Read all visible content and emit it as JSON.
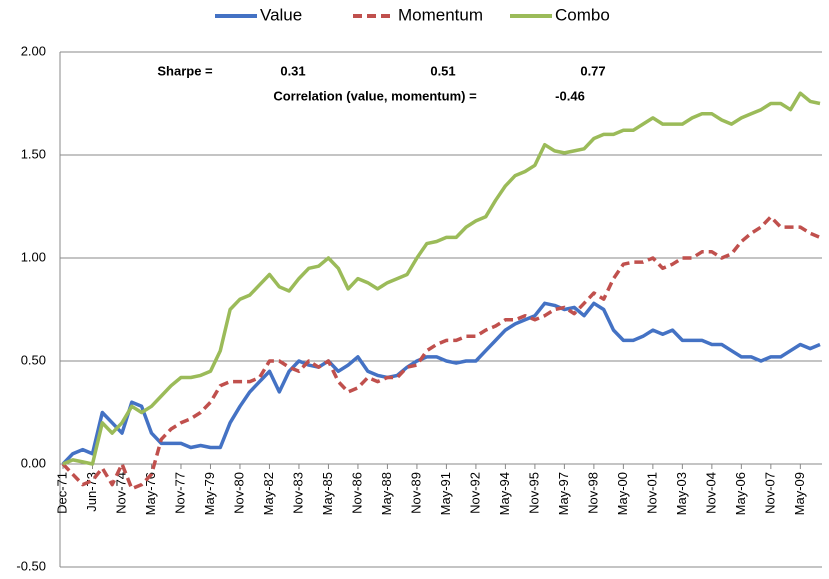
{
  "chart_data": {
    "type": "line",
    "categories": [
      "Dec-71",
      null,
      null,
      "Jun-73",
      null,
      null,
      "Nov-74",
      null,
      null,
      "May-76",
      null,
      null,
      "Nov-77",
      null,
      null,
      "May-79",
      null,
      null,
      "Nov-80",
      null,
      null,
      "May-82",
      null,
      null,
      "Nov-83",
      null,
      null,
      "May-85",
      null,
      null,
      "Nov-86",
      null,
      null,
      "May-88",
      null,
      null,
      "Nov-89",
      null,
      null,
      "May-91",
      null,
      null,
      "Nov-92",
      null,
      null,
      "May-94",
      null,
      null,
      "Nov-95",
      null,
      null,
      "May-97",
      null,
      null,
      "Nov-98",
      null,
      null,
      "May-00",
      null,
      null,
      "Nov-01",
      null,
      null,
      "May-03",
      null,
      null,
      "Nov-04",
      null,
      null,
      "May-06",
      null,
      null,
      "Nov-07",
      null,
      null,
      "May-09",
      null,
      null
    ],
    "series": [
      {
        "name": "Value",
        "color": "#4472c4",
        "dash": false,
        "values": [
          0.0,
          0.05,
          0.07,
          0.05,
          0.25,
          0.2,
          0.15,
          0.3,
          0.28,
          0.15,
          0.1,
          0.1,
          0.1,
          0.08,
          0.09,
          0.08,
          0.08,
          0.2,
          0.28,
          0.35,
          0.4,
          0.45,
          0.35,
          0.45,
          0.5,
          0.48,
          0.47,
          0.5,
          0.45,
          0.48,
          0.52,
          0.45,
          0.43,
          0.42,
          0.43,
          0.47,
          0.5,
          0.52,
          0.52,
          0.5,
          0.49,
          0.5,
          0.5,
          0.55,
          0.6,
          0.65,
          0.68,
          0.7,
          0.72,
          0.78,
          0.77,
          0.75,
          0.76,
          0.72,
          0.78,
          0.75,
          0.65,
          0.6,
          0.6,
          0.62,
          0.65,
          0.63,
          0.65,
          0.6,
          0.6,
          0.6,
          0.58,
          0.58,
          0.55,
          0.52,
          0.52,
          0.5,
          0.52,
          0.52,
          0.55,
          0.58,
          0.56,
          0.58
        ]
      },
      {
        "name": "Momentum",
        "color": "#c0504d",
        "dash": true,
        "values": [
          0.0,
          -0.05,
          -0.1,
          -0.08,
          -0.02,
          -0.1,
          0.0,
          -0.12,
          -0.1,
          -0.05,
          0.12,
          0.17,
          0.2,
          0.22,
          0.25,
          0.3,
          0.38,
          0.4,
          0.4,
          0.4,
          0.42,
          0.5,
          0.5,
          0.47,
          0.45,
          0.5,
          0.47,
          0.5,
          0.4,
          0.35,
          0.37,
          0.42,
          0.4,
          0.42,
          0.42,
          0.47,
          0.48,
          0.55,
          0.58,
          0.6,
          0.6,
          0.62,
          0.62,
          0.65,
          0.67,
          0.7,
          0.7,
          0.72,
          0.7,
          0.72,
          0.75,
          0.76,
          0.73,
          0.78,
          0.83,
          0.8,
          0.9,
          0.97,
          0.98,
          0.98,
          1.0,
          0.95,
          0.97,
          1.0,
          1.0,
          1.03,
          1.03,
          1.0,
          1.02,
          1.08,
          1.12,
          1.15,
          1.2,
          1.15,
          1.15,
          1.15,
          1.12,
          1.1
        ]
      },
      {
        "name": "Combo",
        "color": "#9bbb59",
        "dash": false,
        "values": [
          0.0,
          0.02,
          0.01,
          0.0,
          0.2,
          0.15,
          0.2,
          0.28,
          0.25,
          0.28,
          0.33,
          0.38,
          0.42,
          0.42,
          0.43,
          0.45,
          0.55,
          0.75,
          0.8,
          0.82,
          0.87,
          0.92,
          0.86,
          0.84,
          0.9,
          0.95,
          0.96,
          1.0,
          0.95,
          0.85,
          0.9,
          0.88,
          0.85,
          0.88,
          0.9,
          0.92,
          1.0,
          1.07,
          1.08,
          1.1,
          1.1,
          1.15,
          1.18,
          1.2,
          1.28,
          1.35,
          1.4,
          1.42,
          1.45,
          1.55,
          1.52,
          1.51,
          1.52,
          1.53,
          1.58,
          1.6,
          1.6,
          1.62,
          1.62,
          1.65,
          1.68,
          1.65,
          1.65,
          1.65,
          1.68,
          1.7,
          1.7,
          1.67,
          1.65,
          1.68,
          1.7,
          1.72,
          1.75,
          1.75,
          1.72,
          1.8,
          1.76,
          1.75
        ]
      }
    ],
    "ylim": [
      -0.5,
      2.0
    ],
    "yticks": [
      {
        "value": -0.5,
        "label": "-0.50"
      },
      {
        "value": 0,
        "label": "0.00"
      },
      {
        "value": 0.5,
        "label": "0.50"
      },
      {
        "value": 1,
        "label": "1.00"
      },
      {
        "value": 1.5,
        "label": "1.50"
      },
      {
        "value": 2,
        "label": "2.00"
      }
    ],
    "grid": true,
    "legend": "top",
    "annotations": [
      "Sharpe =",
      "0.31",
      "0.51",
      "0.77",
      "Correlation (value, momentum) =",
      "-0.46"
    ]
  }
}
